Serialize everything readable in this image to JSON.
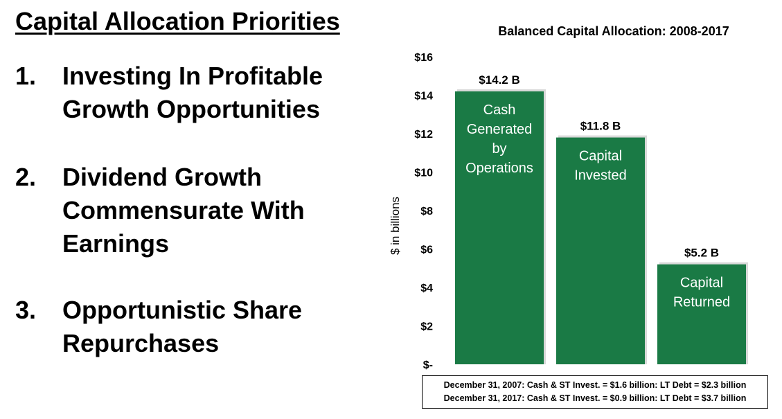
{
  "slide": {
    "title": "Capital Allocation Priorities",
    "priorities": [
      {
        "number": "1.",
        "lines": [
          "Investing In Profitable",
          "Growth Opportunities"
        ]
      },
      {
        "number": "2.",
        "lines": [
          "Dividend Growth",
          "Commensurate With",
          "Earnings"
        ]
      },
      {
        "number": "3.",
        "lines": [
          "Opportunistic Share",
          "Repurchases"
        ]
      }
    ]
  },
  "chart_data": {
    "type": "bar",
    "title": "Balanced Capital Allocation: 2008-2017",
    "ylabel": "$ in billions",
    "ylim": [
      0,
      16
    ],
    "yticks": [
      {
        "value": 0,
        "label": "$-"
      },
      {
        "value": 2,
        "label": "$2"
      },
      {
        "value": 4,
        "label": "$4"
      },
      {
        "value": 6,
        "label": "$6"
      },
      {
        "value": 8,
        "label": "$8"
      },
      {
        "value": 10,
        "label": "$10"
      },
      {
        "value": 12,
        "label": "$12"
      },
      {
        "value": 14,
        "label": "$14"
      },
      {
        "value": 16,
        "label": "$16"
      }
    ],
    "grid": false,
    "bar_color": "#1a7a45",
    "bars": [
      {
        "category_lines": [
          "Cash",
          "Generated",
          "by",
          "Operations"
        ],
        "value": 14.2,
        "data_label": "$14.2 B"
      },
      {
        "category_lines": [
          "Capital",
          "Invested"
        ],
        "value": 11.8,
        "data_label": "$11.8 B"
      },
      {
        "category_lines": [
          "Capital",
          "Returned"
        ],
        "value": 5.2,
        "data_label": "$5.2 B"
      }
    ]
  },
  "footnote": {
    "lines": [
      "December 31, 2007: Cash & ST Invest. = $1.6 billion: LT Debt = $2.3 billion",
      "December 31, 2017: Cash & ST Invest. = $0.9 billion: LT Debt = $3.7 billion"
    ]
  }
}
